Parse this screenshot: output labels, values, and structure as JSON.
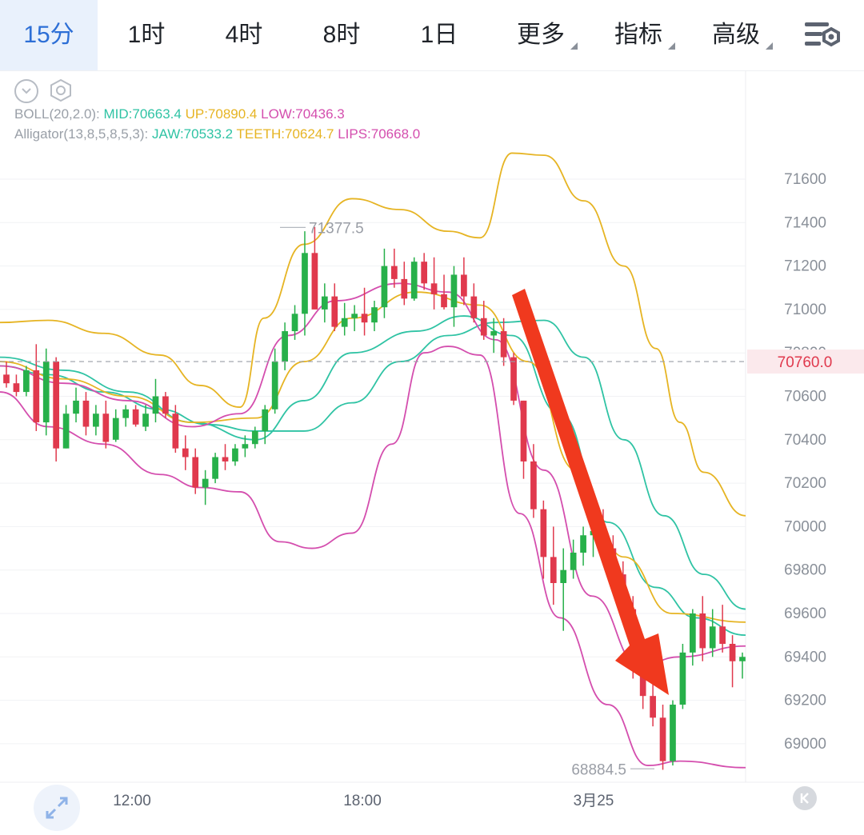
{
  "timeframe_tabs": [
    {
      "label": "15分",
      "active": true
    },
    {
      "label": "1时",
      "active": false
    },
    {
      "label": "4时",
      "active": false
    },
    {
      "label": "8时",
      "active": false
    },
    {
      "label": "1日",
      "active": false
    }
  ],
  "dropdown_tabs": [
    {
      "label": "更多"
    },
    {
      "label": "指标"
    },
    {
      "label": "高级"
    }
  ],
  "indicators": {
    "boll": {
      "name": "BOLL(20,2.0):",
      "mid": "MID:70663.4",
      "up": "UP:70890.4",
      "low": "LOW:70436.3"
    },
    "alligator": {
      "name": "Alligator(13,8,5,8,5,3):",
      "jaw": "JAW:70533.2",
      "teeth": "TEETH:70624.7",
      "lips": "LIPS:70668.0"
    }
  },
  "price_axis": [
    "71600",
    "71400",
    "71200",
    "71000",
    "70800",
    "70600",
    "70400",
    "70200",
    "70000",
    "69800",
    "69600",
    "69400",
    "69200",
    "69000"
  ],
  "current_price": "70760.0",
  "time_axis": [
    "12:00",
    "18:00",
    "3月25"
  ],
  "annotations": {
    "high_label": "71377.5",
    "low_label": "68884.5"
  },
  "colors": {
    "up": "#27b04a",
    "down": "#e0394d",
    "mid": "#2fc3a4",
    "upper": "#e6b423",
    "lower": "#d44eae",
    "active_tab": "#2d6fd6",
    "arrow": "#f0391e"
  },
  "icons": {
    "settings": "chart-settings-icon",
    "collapse": "chevron-down-icon",
    "gear": "gear-icon",
    "expand": "expand-icon",
    "scroll_start": "skip-to-start-icon"
  },
  "chart_data": {
    "type": "candlestick",
    "y_range": [
      68800,
      71800
    ],
    "current_price": 70760.0,
    "marked_high": 71377.5,
    "marked_low": 68884.5,
    "candles_ohlc": [
      [
        70700,
        70760,
        70640,
        70660
      ],
      [
        70660,
        70700,
        70600,
        70620
      ],
      [
        70620,
        70740,
        70600,
        70720
      ],
      [
        70720,
        70840,
        70440,
        70480
      ],
      [
        70480,
        70820,
        70420,
        70760
      ],
      [
        70760,
        70780,
        70300,
        70360
      ],
      [
        70360,
        70560,
        70360,
        70520
      ],
      [
        70520,
        70640,
        70480,
        70580
      ],
      [
        70580,
        70620,
        70420,
        70460
      ],
      [
        70460,
        70560,
        70420,
        70520
      ],
      [
        70520,
        70580,
        70360,
        70390
      ],
      [
        70400,
        70540,
        70390,
        70500
      ],
      [
        70500,
        70560,
        70460,
        70540
      ],
      [
        70540,
        70560,
        70460,
        70470
      ],
      [
        70460,
        70560,
        70440,
        70520
      ],
      [
        70520,
        70680,
        70480,
        70600
      ],
      [
        70600,
        70620,
        70500,
        70520
      ],
      [
        70520,
        70560,
        70340,
        70360
      ],
      [
        70360,
        70420,
        70260,
        70320
      ],
      [
        70320,
        70360,
        70150,
        70180
      ],
      [
        70180,
        70260,
        70100,
        70220
      ],
      [
        70220,
        70340,
        70200,
        70320
      ],
      [
        70320,
        70380,
        70260,
        70300
      ],
      [
        70300,
        70380,
        70280,
        70360
      ],
      [
        70360,
        70420,
        70320,
        70380
      ],
      [
        70380,
        70460,
        70360,
        70440
      ],
      [
        70440,
        70560,
        70380,
        70540
      ],
      [
        70540,
        70820,
        70520,
        70760
      ],
      [
        70760,
        70940,
        70720,
        70900
      ],
      [
        70900,
        71020,
        70860,
        70980
      ],
      [
        70980,
        71360,
        70880,
        71260
      ],
      [
        71260,
        71380,
        71040,
        71000
      ],
      [
        71000,
        71120,
        70940,
        71060
      ],
      [
        71060,
        71120,
        70900,
        70920
      ],
      [
        70920,
        71030,
        70880,
        70960
      ],
      [
        70960,
        71020,
        70900,
        70980
      ],
      [
        70980,
        71100,
        70880,
        70940
      ],
      [
        70940,
        71040,
        70900,
        71010
      ],
      [
        71010,
        71280,
        70960,
        71200
      ],
      [
        71200,
        71280,
        71100,
        71140
      ],
      [
        71140,
        71220,
        71020,
        71050
      ],
      [
        71050,
        71240,
        71040,
        71220
      ],
      [
        71220,
        71260,
        71090,
        71120
      ],
      [
        71120,
        71240,
        71000,
        71070
      ],
      [
        71070,
        71160,
        71000,
        71010
      ],
      [
        71010,
        71200,
        70920,
        71160
      ],
      [
        71160,
        71240,
        71020,
        71060
      ],
      [
        71060,
        71120,
        70940,
        70960
      ],
      [
        70960,
        71040,
        70860,
        70880
      ],
      [
        70880,
        70960,
        70800,
        70900
      ],
      [
        70900,
        70960,
        70740,
        70780
      ],
      [
        70780,
        70800,
        70560,
        70580
      ],
      [
        70580,
        70580,
        70220,
        70300
      ],
      [
        70300,
        70380,
        70040,
        70080
      ],
      [
        70080,
        70120,
        69760,
        69860
      ],
      [
        69860,
        70000,
        69640,
        69740
      ],
      [
        69740,
        69900,
        69520,
        69800
      ],
      [
        69800,
        69940,
        69760,
        69880
      ],
      [
        69880,
        70000,
        69820,
        69960
      ],
      [
        69960,
        70060,
        69860,
        69980
      ],
      [
        69980,
        70080,
        69860,
        69900
      ],
      [
        69900,
        69960,
        69760,
        69780
      ],
      [
        69780,
        69840,
        69580,
        69620
      ],
      [
        69620,
        69680,
        69300,
        69360
      ],
      [
        69360,
        69420,
        69160,
        69220
      ],
      [
        69220,
        69280,
        69080,
        69120
      ],
      [
        69120,
        69180,
        68880,
        68920
      ],
      [
        68920,
        69200,
        68900,
        69180
      ],
      [
        69180,
        69460,
        69160,
        69420
      ],
      [
        69420,
        69620,
        69360,
        69600
      ],
      [
        69600,
        69680,
        69380,
        69440
      ],
      [
        69440,
        69620,
        69400,
        69540
      ],
      [
        69540,
        69640,
        69420,
        69460
      ],
      [
        69460,
        69500,
        69260,
        69380
      ],
      [
        69380,
        69420,
        69300,
        69400
      ]
    ]
  }
}
